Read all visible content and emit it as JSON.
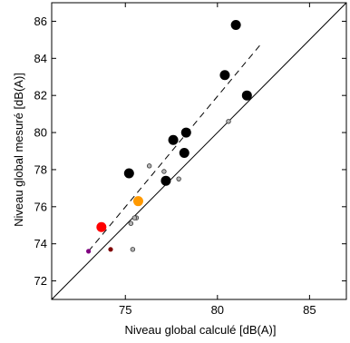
{
  "chart_data": {
    "type": "scatter",
    "xlabel": "Niveau global calculé  [dB(A)]",
    "ylabel": "Niveau global mesuré  [dB(A)]",
    "xlim": [
      71,
      87
    ],
    "ylim": [
      71,
      87
    ],
    "xticks": [
      75,
      80,
      85
    ],
    "yticks": [
      72,
      74,
      76,
      78,
      80,
      82,
      84,
      86
    ],
    "grid": false,
    "reference_lines": [
      {
        "style": "solid",
        "color": "#000000",
        "points": [
          [
            71,
            71
          ],
          [
            87,
            87
          ]
        ]
      },
      {
        "style": "dashed",
        "color": "#000000",
        "points": [
          [
            73,
            73.6
          ],
          [
            82.3,
            84.7
          ]
        ]
      }
    ],
    "series": [
      {
        "marker": "large-filled",
        "color": "#000000",
        "points": [
          [
            81.0,
            85.8
          ],
          [
            80.4,
            83.1
          ],
          [
            81.6,
            82.0
          ],
          [
            78.3,
            80.0
          ],
          [
            77.6,
            79.6
          ],
          [
            78.2,
            78.9
          ],
          [
            75.2,
            77.8
          ],
          [
            77.2,
            77.4
          ]
        ]
      },
      {
        "marker": "large-filled",
        "color": "#ff0000",
        "points": [
          [
            73.7,
            74.9
          ]
        ]
      },
      {
        "marker": "large-filled",
        "color": "#ff9900",
        "points": [
          [
            75.7,
            76.3
          ]
        ]
      },
      {
        "marker": "small-gray",
        "color": "#b4b4b4",
        "points": [
          [
            80.6,
            80.6
          ],
          [
            76.3,
            78.2
          ],
          [
            77.1,
            77.9
          ],
          [
            77.9,
            77.5
          ],
          [
            75.6,
            75.4
          ],
          [
            75.5,
            75.4
          ],
          [
            75.3,
            75.1
          ],
          [
            75.4,
            73.7
          ]
        ]
      },
      {
        "marker": "small-purple",
        "color": "#800080",
        "points": [
          [
            73.0,
            73.6
          ]
        ]
      },
      {
        "marker": "small-darkred",
        "color": "#800000",
        "points": [
          [
            74.2,
            73.7
          ]
        ]
      }
    ]
  }
}
